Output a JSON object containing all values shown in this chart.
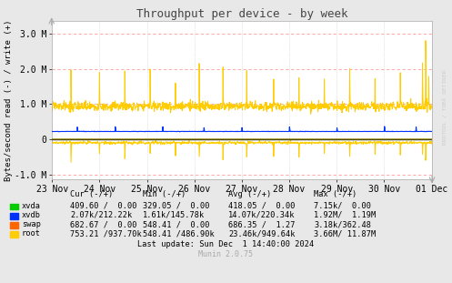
{
  "title": "Throughput per device - by week",
  "ylabel": "Bytes/second read (-) / write (+)",
  "xlabel_ticks": [
    "23 Nov",
    "24 Nov",
    "25 Nov",
    "26 Nov",
    "27 Nov",
    "28 Nov",
    "29 Nov",
    "30 Nov",
    "01 Dec"
  ],
  "ylim": [
    -1150000,
    3350000
  ],
  "yticks": [
    -1000000,
    0,
    1000000,
    2000000,
    3000000
  ],
  "ytick_labels": [
    "-1.0 M",
    "0",
    "1.0 M",
    "2.0 M",
    "3.0 M"
  ],
  "bg_color": "#e8e8e8",
  "plot_bg_color": "#ffffff",
  "grid_color_h": "#ff9999",
  "grid_color_v": "#cccccc",
  "zero_line_color": "#000000",
  "watermark": "RRDTOOL / TOBI OETIKER",
  "munin_version": "Munin 2.0.75",
  "colors": {
    "xvda": "#00cc00",
    "xvdb": "#0033ff",
    "swap": "#ff6600",
    "root": "#ffcc00"
  },
  "legend_headers": [
    "Cur (-/+)",
    "Min (-/+)",
    "Avg (-/+)",
    "Max (-/+)"
  ],
  "legend_rows": [
    [
      "xvda",
      "#00cc00",
      "409.60 /  0.00",
      "329.05 /  0.00",
      "418.05 /  0.00",
      "7.15k/  0.00"
    ],
    [
      "xvdb",
      "#0033ff",
      "2.07k/212.22k",
      "1.61k/145.78k",
      "14.07k/220.34k",
      "1.92M/  1.19M"
    ],
    [
      "swap",
      "#ff6600",
      "682.67 /  0.00",
      "548.41 /  0.00",
      "686.35 /  1.27",
      "3.18k/362.48"
    ],
    [
      "root",
      "#ffcc00",
      "753.21 /937.70k",
      "548.41 /486.90k",
      "23.46k/949.64k",
      "3.66M/ 11.87M"
    ]
  ],
  "last_update": "Last update: Sun Dec  1 14:40:00 2024"
}
